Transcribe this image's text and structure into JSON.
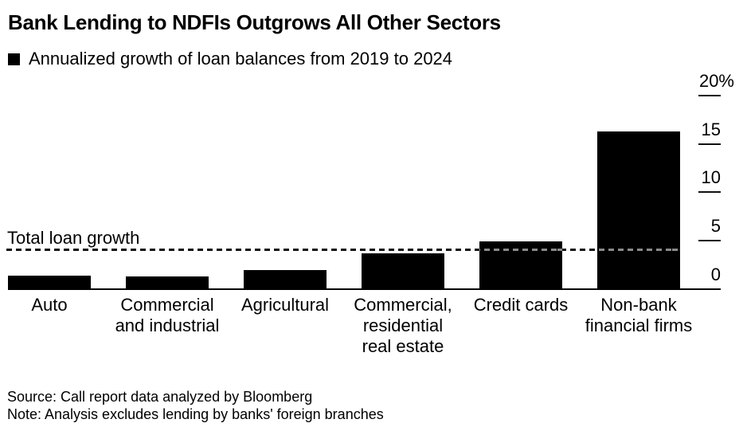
{
  "title": "Bank Lending to NDFIs Outgrows All Other Sectors",
  "legend": {
    "swatch_color": "#000000",
    "label": "Annualized growth of loan balances from 2019 to 2024"
  },
  "chart_data": {
    "type": "bar",
    "title": "Bank Lending to NDFIs Outgrows All Other Sectors",
    "subtitle": "Annualized growth of loan balances from 2019 to 2024",
    "categories": [
      [
        "Auto"
      ],
      [
        "Commercial",
        "and industrial"
      ],
      [
        "Agricultural"
      ],
      [
        "Commercial,",
        "residential",
        "real estate"
      ],
      [
        "Credit cards"
      ],
      [
        "Non-bank",
        "financial firms"
      ]
    ],
    "values": [
      1.4,
      1.3,
      2.0,
      3.7,
      4.9,
      16.3
    ],
    "unit": "%",
    "ylim": [
      0,
      20
    ],
    "yticks": [
      {
        "value": 20,
        "label": "20%"
      },
      {
        "value": 15,
        "label": "15"
      },
      {
        "value": 10,
        "label": "10"
      },
      {
        "value": 5,
        "label": "5"
      },
      {
        "value": 0,
        "label": "0"
      }
    ],
    "reference_line": {
      "label": "Total loan growth",
      "value": 4.2,
      "style": "dashed"
    },
    "bar_color": "#000000",
    "axis_side": "right",
    "grid": false,
    "legend_position": "top-left"
  },
  "footer": {
    "source": "Source: Call report data analyzed by Bloomberg",
    "note": "Note: Analysis excludes lending by banks' foreign branches"
  }
}
